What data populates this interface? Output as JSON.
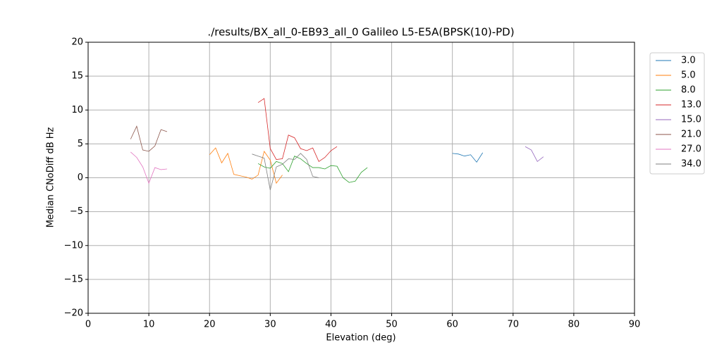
{
  "chart_data": {
    "type": "line",
    "title": "./results/BX_all_0-EB93_all_0 Galileo L5-E5A(BPSK(10)-PD)",
    "xlabel": "Elevation (deg)",
    "ylabel": "Median CNoDiff dB Hz",
    "xlim": [
      0,
      90
    ],
    "ylim": [
      -20,
      20
    ],
    "xticks": [
      0,
      10,
      20,
      30,
      40,
      50,
      60,
      70,
      80,
      90
    ],
    "yticks": [
      {
        "value": -20,
        "label": "−20"
      },
      {
        "value": -15,
        "label": "−15"
      },
      {
        "value": -10,
        "label": "−10"
      },
      {
        "value": -5,
        "label": "−5"
      },
      0,
      5,
      10,
      15,
      20
    ],
    "grid": true,
    "legend": "right",
    "series": [
      {
        "name": "3.0",
        "color": "#1f77b4",
        "x": [
          60,
          61,
          62,
          63,
          64,
          65
        ],
        "values": [
          3.6,
          3.5,
          3.2,
          3.4,
          2.3,
          3.7
        ]
      },
      {
        "name": "5.0",
        "color": "#ff7f0e",
        "x": [
          20,
          21,
          22,
          23,
          24,
          25,
          26,
          27,
          28,
          29,
          30,
          31,
          32
        ],
        "values": [
          3.4,
          4.4,
          2.2,
          3.6,
          0.5,
          0.3,
          0.1,
          -0.2,
          0.4,
          3.9,
          2.6,
          -0.8,
          0.4
        ]
      },
      {
        "name": "8.0",
        "color": "#2ca02c",
        "x": [
          28,
          29,
          30,
          31,
          32,
          33,
          34,
          35,
          36,
          37,
          38,
          39,
          40,
          41,
          42,
          43,
          44,
          45,
          46
        ],
        "values": [
          2.1,
          1.6,
          1.4,
          2.4,
          2.1,
          0.9,
          3.2,
          2.8,
          2.1,
          1.5,
          1.5,
          1.3,
          1.8,
          1.7,
          0,
          -0.7,
          -0.5,
          0.8,
          1.5
        ]
      },
      {
        "name": "13.0",
        "color": "#d62728",
        "x": [
          28,
          29,
          30,
          31,
          32,
          33,
          34,
          35,
          36,
          37,
          38,
          39,
          40,
          41
        ],
        "values": [
          11.1,
          11.7,
          4.3,
          2.7,
          2.8,
          6.3,
          5.9,
          4.3,
          4.0,
          4.4,
          2.4,
          3.0,
          4.0,
          4.6
        ]
      },
      {
        "name": "15.0",
        "color": "#9467bd",
        "x": [
          72,
          73,
          74,
          75
        ],
        "values": [
          4.6,
          4.1,
          2.4,
          3.1
        ]
      },
      {
        "name": "21.0",
        "color": "#8c564b",
        "x": [
          7,
          8,
          9,
          10,
          11,
          12,
          13
        ],
        "values": [
          5.7,
          7.6,
          4.1,
          3.9,
          4.7,
          7.1,
          6.8
        ]
      },
      {
        "name": "27.0",
        "color": "#e377c2",
        "x": [
          7,
          8,
          9,
          10,
          11,
          12,
          13
        ],
        "values": [
          3.8,
          3.0,
          1.6,
          -0.8,
          1.5,
          1.2,
          1.3
        ]
      },
      {
        "name": "34.0",
        "color": "#7f7f7f",
        "x": [
          27,
          28,
          29,
          30,
          31,
          32,
          33,
          34,
          35,
          36,
          37,
          38
        ],
        "values": [
          3.5,
          3.2,
          2.9,
          -1.8,
          1.6,
          2.0,
          2.8,
          2.7,
          3.6,
          2.7,
          0.2,
          0.0
        ]
      }
    ]
  }
}
